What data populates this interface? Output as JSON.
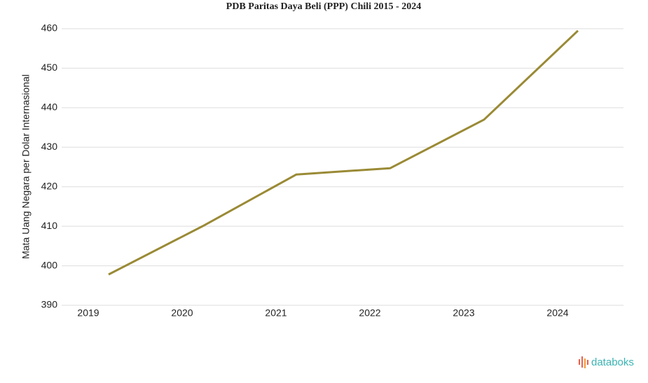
{
  "chart_data": {
    "type": "line",
    "title": "PDB Paritas Daya Beli (PPP) Chili 2015 - 2024",
    "y_label": "Mata Uang Negara per Dolar Internasional",
    "categories": [
      "2019",
      "2020",
      "2021",
      "2022",
      "2023",
      "2024"
    ],
    "series": [
      {
        "name": "PDB PPP",
        "color": "#9a8a35",
        "values": [
          397.8,
          410.0,
          423.1,
          424.7,
          437.0,
          459.5
        ]
      }
    ],
    "ylim": [
      390,
      460
    ],
    "yticks": [
      390,
      400,
      410,
      420,
      430,
      440,
      450,
      460
    ],
    "grid": true
  },
  "logo": "databoks"
}
